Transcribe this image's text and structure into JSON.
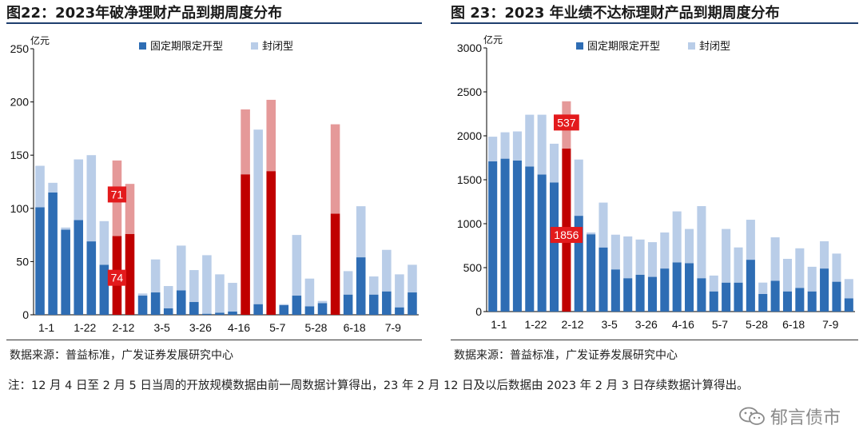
{
  "titles": {
    "left": "图22：2023年破净理财产品到期周度分布",
    "right": "图 23：2023 年业绩不达标理财产品到期周度分布"
  },
  "sources": {
    "left": "数据来源：普益标准，广发证券发展研究中心",
    "right": "数据来源：普益标准，广发证券发展研究中心"
  },
  "note": "注：12 月 4 日至 2 月 5 日当周的开放规模数据由前一周数据计算得出，23 年 2 月 12 日及以后数据由 2023 年 2 月 3 日存续数据计算得出。",
  "watermark": "郁言债市",
  "colors": {
    "open": "#2e6db4",
    "closed": "#b9cde8",
    "open_highlight": "#c00000",
    "closed_highlight": "#e59999",
    "label_bg": "#e31a1c"
  },
  "chart_data": [
    {
      "type": "bar",
      "stacked": true,
      "title": "图22：2023年破净理财产品到期周度分布",
      "unit": "亿元",
      "ylim": [
        0,
        250
      ],
      "yticks": [
        0,
        50,
        100,
        150,
        200,
        250
      ],
      "xtick_labels": [
        "1-1",
        "1-22",
        "2-12",
        "3-5",
        "3-26",
        "4-16",
        "5-7",
        "5-28",
        "6-18",
        "7-9"
      ],
      "xtick_indices": [
        0,
        3,
        6,
        9,
        12,
        15,
        18,
        21,
        24,
        27
      ],
      "categories_count": 30,
      "legend": [
        "固定期限定开型",
        "封闭型"
      ],
      "series": [
        {
          "name": "固定期限定开型",
          "values": [
            101,
            115,
            80,
            89,
            69,
            47,
            74,
            76,
            18,
            21,
            6,
            23,
            12,
            1,
            2,
            3,
            132,
            10,
            135,
            9,
            18,
            8,
            11,
            95,
            19,
            54,
            19,
            22,
            7,
            21
          ]
        },
        {
          "name": "封闭型",
          "values": [
            39,
            9,
            2,
            57,
            81,
            41,
            71,
            47,
            2,
            31,
            21,
            42,
            30,
            55,
            36,
            27,
            61,
            164,
            67,
            1,
            57,
            26,
            2,
            84,
            22,
            48,
            17,
            39,
            31,
            26
          ]
        }
      ],
      "highlight_indices": [
        6,
        7,
        16,
        18,
        23
      ],
      "data_labels": [
        {
          "index": 6,
          "series": "固定期限定开型",
          "text": "74"
        },
        {
          "index": 6,
          "series": "封闭型",
          "text": "71"
        }
      ]
    },
    {
      "type": "bar",
      "stacked": true,
      "title": "图 23：2023 年业绩不达标理财产品到期周度分布",
      "unit": "亿元",
      "ylim": [
        0,
        3000
      ],
      "yticks": [
        0,
        500,
        1000,
        1500,
        2000,
        2500,
        3000
      ],
      "xtick_labels": [
        "1-1",
        "1-22",
        "2-12",
        "3-5",
        "3-26",
        "4-16",
        "5-7",
        "5-28",
        "6-18",
        "7-9"
      ],
      "xtick_indices": [
        0,
        3,
        6,
        9,
        12,
        15,
        18,
        21,
        24,
        27
      ],
      "categories_count": 30,
      "legend": [
        "固定期限定开型",
        "封闭型"
      ],
      "series": [
        {
          "name": "固定期限定开型",
          "values": [
            1710,
            1740,
            1720,
            1650,
            1560,
            1470,
            1856,
            1090,
            880,
            730,
            480,
            380,
            420,
            395,
            490,
            560,
            550,
            380,
            230,
            330,
            330,
            590,
            200,
            350,
            230,
            270,
            230,
            490,
            340,
            150
          ]
        },
        {
          "name": "封闭型",
          "values": [
            280,
            300,
            330,
            590,
            680,
            440,
            537,
            640,
            20,
            510,
            395,
            475,
            400,
            395,
            410,
            580,
            390,
            820,
            180,
            610,
            400,
            455,
            130,
            495,
            370,
            450,
            280,
            310,
            320,
            220
          ]
        }
      ],
      "highlight_indices": [
        6
      ],
      "data_labels": [
        {
          "index": 6,
          "series": "固定期限定开型",
          "text": "1856"
        },
        {
          "index": 6,
          "series": "封闭型",
          "text": "537"
        }
      ]
    }
  ]
}
